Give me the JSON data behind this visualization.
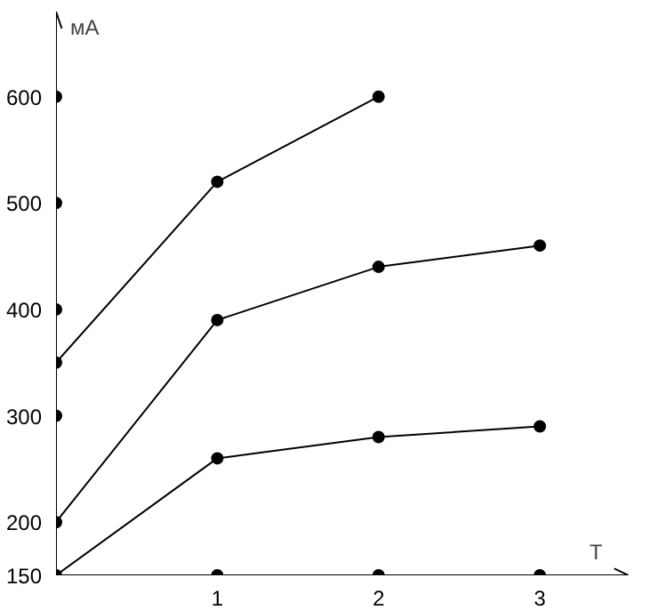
{
  "chart_data": {
    "type": "line",
    "xlabel": "T",
    "ylabel": "мА",
    "xlim": [
      0,
      3.55
    ],
    "ylim": [
      150,
      680
    ],
    "xticks": [
      1,
      2,
      3
    ],
    "yticks": [
      150,
      200,
      300,
      400,
      500,
      600
    ],
    "grid": false,
    "marker": "circle",
    "line_style": "solid",
    "series": [
      {
        "color": "#000000",
        "x": [
          0,
          1,
          2
        ],
        "values": [
          350,
          520,
          600
        ]
      },
      {
        "color": "#000000",
        "x": [
          0,
          1,
          2,
          3
        ],
        "values": [
          200,
          390,
          440,
          460
        ]
      },
      {
        "color": "#000000",
        "x": [
          0,
          1,
          2,
          3
        ],
        "values": [
          150,
          260,
          280,
          290
        ]
      },
      {
        "type": "scatter",
        "color": "#000000",
        "x": [
          0,
          0,
          0,
          0
        ],
        "values": [
          300,
          400,
          500,
          600
        ]
      },
      {
        "type": "scatter",
        "color": "#000000",
        "x": [
          1,
          2,
          3
        ],
        "values": [
          150,
          150,
          150
        ]
      }
    ]
  }
}
